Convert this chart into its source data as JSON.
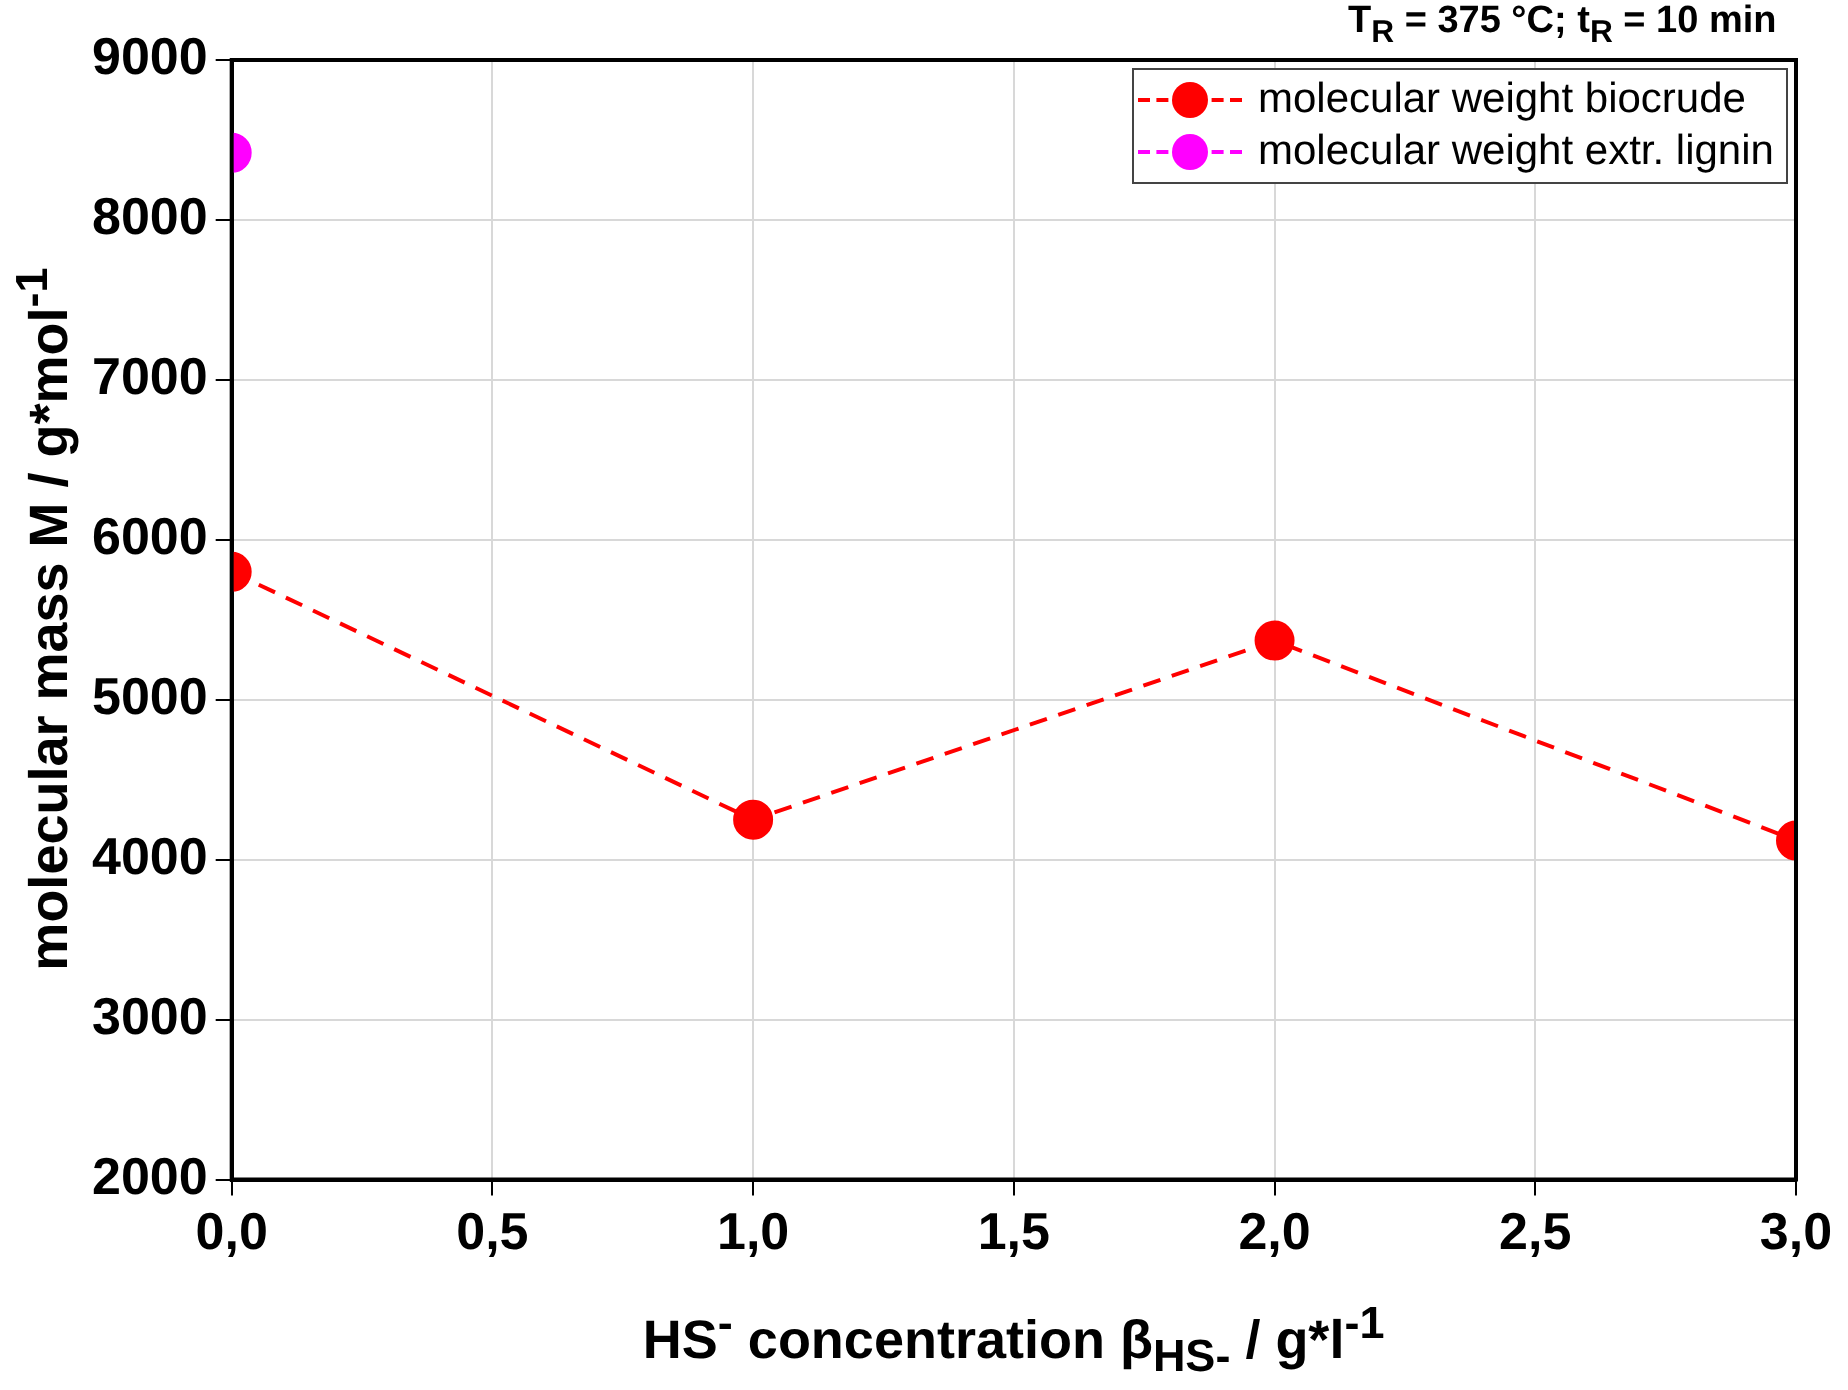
{
  "chart_data": {
    "type": "line",
    "title": "T$_{R}$ = 375 °C; t$_{R}$ = 10 min",
    "xlabel": "HS$^{-}$ concentration β$_{HS-}$ / g*l$^{-1}$",
    "ylabel": "molecular mass M / g*mol$^{-1}$",
    "x": [
      0,
      1,
      2,
      3
    ],
    "series": [
      {
        "name": "molecular weight biocrude",
        "color": "#ff0000",
        "values": [
          5800,
          4250,
          5370,
          4120
        ]
      },
      {
        "name": "molecular weight extr. lignin",
        "color": "#ff00ff",
        "values": [
          8420,
          null,
          null,
          null
        ]
      }
    ],
    "xlim": [
      0,
      3
    ],
    "xticks": [
      {
        "value": 0,
        "label": "0,0"
      },
      {
        "value": 0.5,
        "label": "0,5"
      },
      {
        "value": 1,
        "label": "1,0"
      },
      {
        "value": 1.5,
        "label": "1,5"
      },
      {
        "value": 2,
        "label": "2,0"
      },
      {
        "value": 2.5,
        "label": "2,5"
      },
      {
        "value": 3,
        "label": "3,0"
      }
    ],
    "ylim": [
      2000,
      9000
    ],
    "yticks": [
      2000,
      3000,
      4000,
      5000,
      6000,
      7000,
      8000,
      9000
    ],
    "grid": true,
    "legend": "top right",
    "marker": "circle",
    "line_style": "dashed"
  }
}
